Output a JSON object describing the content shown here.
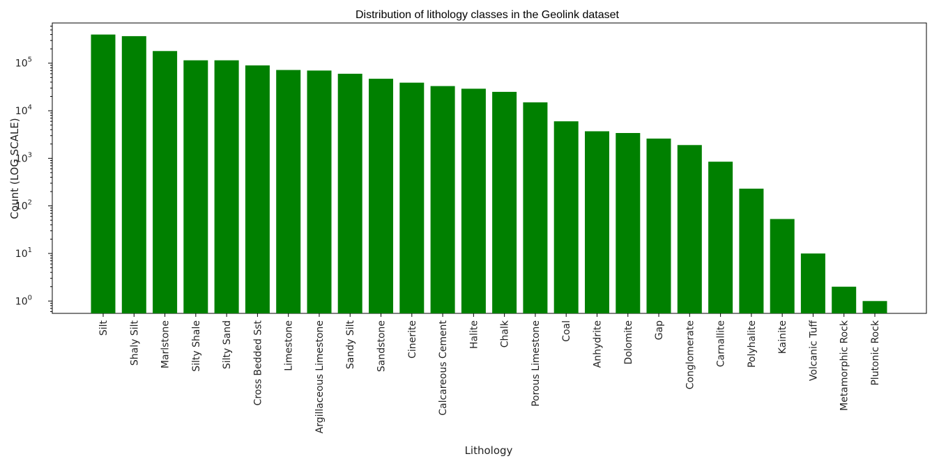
{
  "chart_data": {
    "type": "bar",
    "title": "Distribution of lithology classes in the Geolink dataset",
    "xlabel": "Lithology",
    "ylabel": "Count (LOG SCALE)",
    "y_scale": "log",
    "ylim": [
      0.55,
      700000
    ],
    "y_ticks": [
      {
        "value": 1,
        "base": "10",
        "exp": "0"
      },
      {
        "value": 10,
        "base": "10",
        "exp": "1"
      },
      {
        "value": 100,
        "base": "10",
        "exp": "2"
      },
      {
        "value": 1000,
        "base": "10",
        "exp": "3"
      },
      {
        "value": 10000,
        "base": "10",
        "exp": "4"
      },
      {
        "value": 100000,
        "base": "10",
        "exp": "5"
      }
    ],
    "bar_color": "#008000",
    "grid": false,
    "categories": [
      "Silt",
      "Shaly Silt",
      "Marlstone",
      "Silty Shale",
      "Silty Sand",
      "Cross Bedded Sst",
      "Limestone",
      "Argillaceous Limestone",
      "Sandy Silt",
      "Sandstone",
      "Cinerite",
      "Calcareous Cement",
      "Halite",
      "Chalk",
      "Porous Limestone",
      "Coal",
      "Anhydrite",
      "Dolomite",
      "Gap",
      "Conglomerate",
      "Carnallite",
      "Polyhalite",
      "Kainite",
      "Volcanic Tuff",
      "Metamorphic Rock",
      "Plutonic Rock"
    ],
    "values": [
      400000,
      370000,
      180000,
      115000,
      115000,
      90000,
      72000,
      70000,
      60000,
      47000,
      39000,
      33000,
      29000,
      25000,
      15000,
      6000,
      3700,
      3400,
      2600,
      1900,
      850,
      230,
      53,
      10,
      2,
      1
    ]
  }
}
